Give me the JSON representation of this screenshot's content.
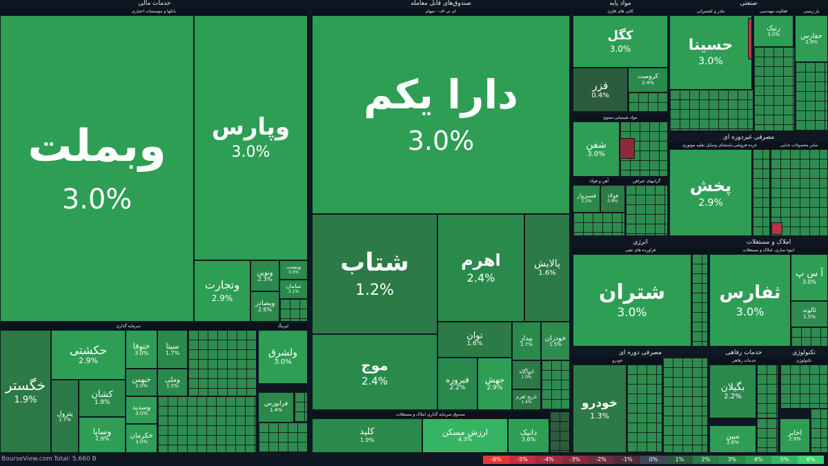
{
  "sectors": {
    "financial": "خدمات مالی",
    "etf": "صندوق‌های قابل معامله",
    "basic": "مواد پایه",
    "industrial": "صنعتی",
    "energy": "انرژی",
    "realestate": "املاک و مستغلات",
    "consumer_non_cyclical": "مصرفی غیردوره ای",
    "consumer_cyclical": "مصرفی دوره ای",
    "welfare": "خدمات رفاهی",
    "tech": "تکنولوژی"
  },
  "groups": {
    "banks": "بانکها و موسسات اعتباری",
    "investment": "سرمایه گذاری",
    "leasing": "لیزینگ",
    "etf_stock": "ای تی اف - سهام",
    "etf_realestate": "صندوق سرمایه گذاری املاک و مستغلات",
    "metal_mining": "کانی های فلزی",
    "chemical": "مواد شیمیایی-متنوع",
    "iron_steel": "آهن و فولاد",
    "nonferrous": "گرانبهای غیراهن",
    "ports": "بنادر و کشتیرانی",
    "engineering": "فعالیت مهندسی",
    "land_transport": "بار زمینی",
    "oil": "فراورده های نفتی",
    "construction": "انبوه سازی، املاک و مستغلات",
    "retail": "خرده فروشی،باستثنای وسایل نقلیه موتوری",
    "food": "سایر محصولات غذایی",
    "auto": "خودرو",
    "welfare_group": "خدمات رفاهی",
    "it": "تکنولوژی"
  },
  "tiles": {
    "vbmellat": {
      "name": "وبملت",
      "pct": "3.0%"
    },
    "vpars": {
      "name": "وپارس",
      "pct": "3.0%"
    },
    "vtejarat": {
      "name": "وتجارت",
      "pct": "2.9%"
    },
    "vnovin": {
      "name": "ونوین",
      "pct": "2.3%"
    },
    "vbsader": {
      "name": "وبصادر",
      "pct": "2.6%"
    },
    "vbist": {
      "name": "وبست",
      "pct": "3.0%"
    },
    "saman": {
      "name": "سامان",
      "pct": "3.1%"
    },
    "daryekom": {
      "name": "دارا یکم",
      "pct": "3.0%"
    },
    "shetab": {
      "name": "شتاب",
      "pct": "1.2%"
    },
    "ahrom": {
      "name": "اهرم",
      "pct": "2.4%"
    },
    "palayesh": {
      "name": "پالایش",
      "pct": "1.6%"
    },
    "mowj": {
      "name": "موج",
      "pct": "2.4%"
    },
    "tavan": {
      "name": "توان",
      "pct": "1.6%"
    },
    "firouzeh": {
      "name": "فیروزه",
      "pct": "2.2%"
    },
    "jahesh": {
      "name": "جهش",
      "pct": "2.9%"
    },
    "bidar": {
      "name": "بیدار",
      "pct": "2.7%"
    },
    "khodran": {
      "name": "خودران",
      "pct": "1.5%"
    },
    "otagah": {
      "name": "اتوآگاه",
      "pct": "1.0%"
    },
    "tarikhaharam": {
      "name": "تاریخ اهرم",
      "pct": "1.4%"
    },
    "kolid": {
      "name": "کلید",
      "pct": "1.9%"
    },
    "arzeshmaskan": {
      "name": "ارزش مسکن",
      "pct": "4.3%"
    },
    "danik": {
      "name": "دانیک",
      "pct": "3.6%"
    },
    "khagostar": {
      "name": "خگستر",
      "pct": "1.9%"
    },
    "hekashti": {
      "name": "حکشتی",
      "pct": "2.9%"
    },
    "khotoga": {
      "name": "ختوقا",
      "pct": "3.0%"
    },
    "sita": {
      "name": "سیتا",
      "pct": "1.7%"
    },
    "khebahman": {
      "name": "خبهمن",
      "pct": "2.0%"
    },
    "vamli": {
      "name": "وملی",
      "pct": "1.5%"
    },
    "kashan": {
      "name": "کشان",
      "pct": "1.9%"
    },
    "petrol": {
      "name": "پترول",
      "pct": "1.7%"
    },
    "vsapa": {
      "name": "وساپا",
      "pct": "2.9%"
    },
    "vsadid": {
      "name": "وسدید",
      "pct": "3.0%"
    },
    "khekarman": {
      "name": "خکرمان",
      "pct": "3.0%"
    },
    "valshareq": {
      "name": "ولشرق",
      "pct": "3.0%"
    },
    "fraboors": {
      "name": "فرابورس",
      "pct": "1.4%"
    },
    "kegol": {
      "name": "کگل",
      "pct": "3.0%"
    },
    "fazar": {
      "name": "فزر",
      "pct": "0.4%"
    },
    "kromit": {
      "name": "کرومیت",
      "pct": "2.4%"
    },
    "shafan": {
      "name": "شفن",
      "pct": "3.0%"
    },
    "foolad": {
      "name": "فولاد",
      "pct": "0.8%"
    },
    "fsabzevar": {
      "name": "فسبزوار",
      "pct": "2.2%"
    },
    "hasina": {
      "name": "حسینا",
      "pct": "3.0%"
    },
    "rink": {
      "name": "رنیک",
      "pct": "3.0%"
    },
    "hafars": {
      "name": "حفارس",
      "pct": "2.9%"
    },
    "pakhsh": {
      "name": "پخش",
      "pct": "2.9%"
    },
    "shetran": {
      "name": "شتران",
      "pct": "3.0%"
    },
    "sefars": {
      "name": "ثفارس",
      "pct": "3.0%"
    },
    "aspi": {
      "name": "آ س پ",
      "pct": "3.0%"
    },
    "salvand": {
      "name": "ثالوند",
      "pct": "1.5%"
    },
    "khodro": {
      "name": "خودرو",
      "pct": "1.3%"
    },
    "bagilan": {
      "name": "بگیلان",
      "pct": "2.2%"
    },
    "mabin": {
      "name": "مبین",
      "pct": "2.6%"
    },
    "akhabar": {
      "name": "اخابر",
      "pct": "2.9%"
    }
  },
  "footer": {
    "brand": "BourseView.com",
    "total": "Total: 5,660 B",
    "legend": [
      "-6%",
      "-5%",
      "-4%",
      "-3%",
      "-2%",
      "-1%",
      "0%",
      "1%",
      "2%",
      "3%",
      "4%",
      "5%",
      "6%"
    ],
    "legend_colors": [
      "#e53935",
      "#c62f3f",
      "#a62b3c",
      "#8a2c3b",
      "#6f2d3a",
      "#512e3a",
      "#3f4a55",
      "#2b5d3c",
      "#2c7a45",
      "#2a8a4b",
      "#2f9e55",
      "#35b563",
      "#3fd06f"
    ]
  }
}
